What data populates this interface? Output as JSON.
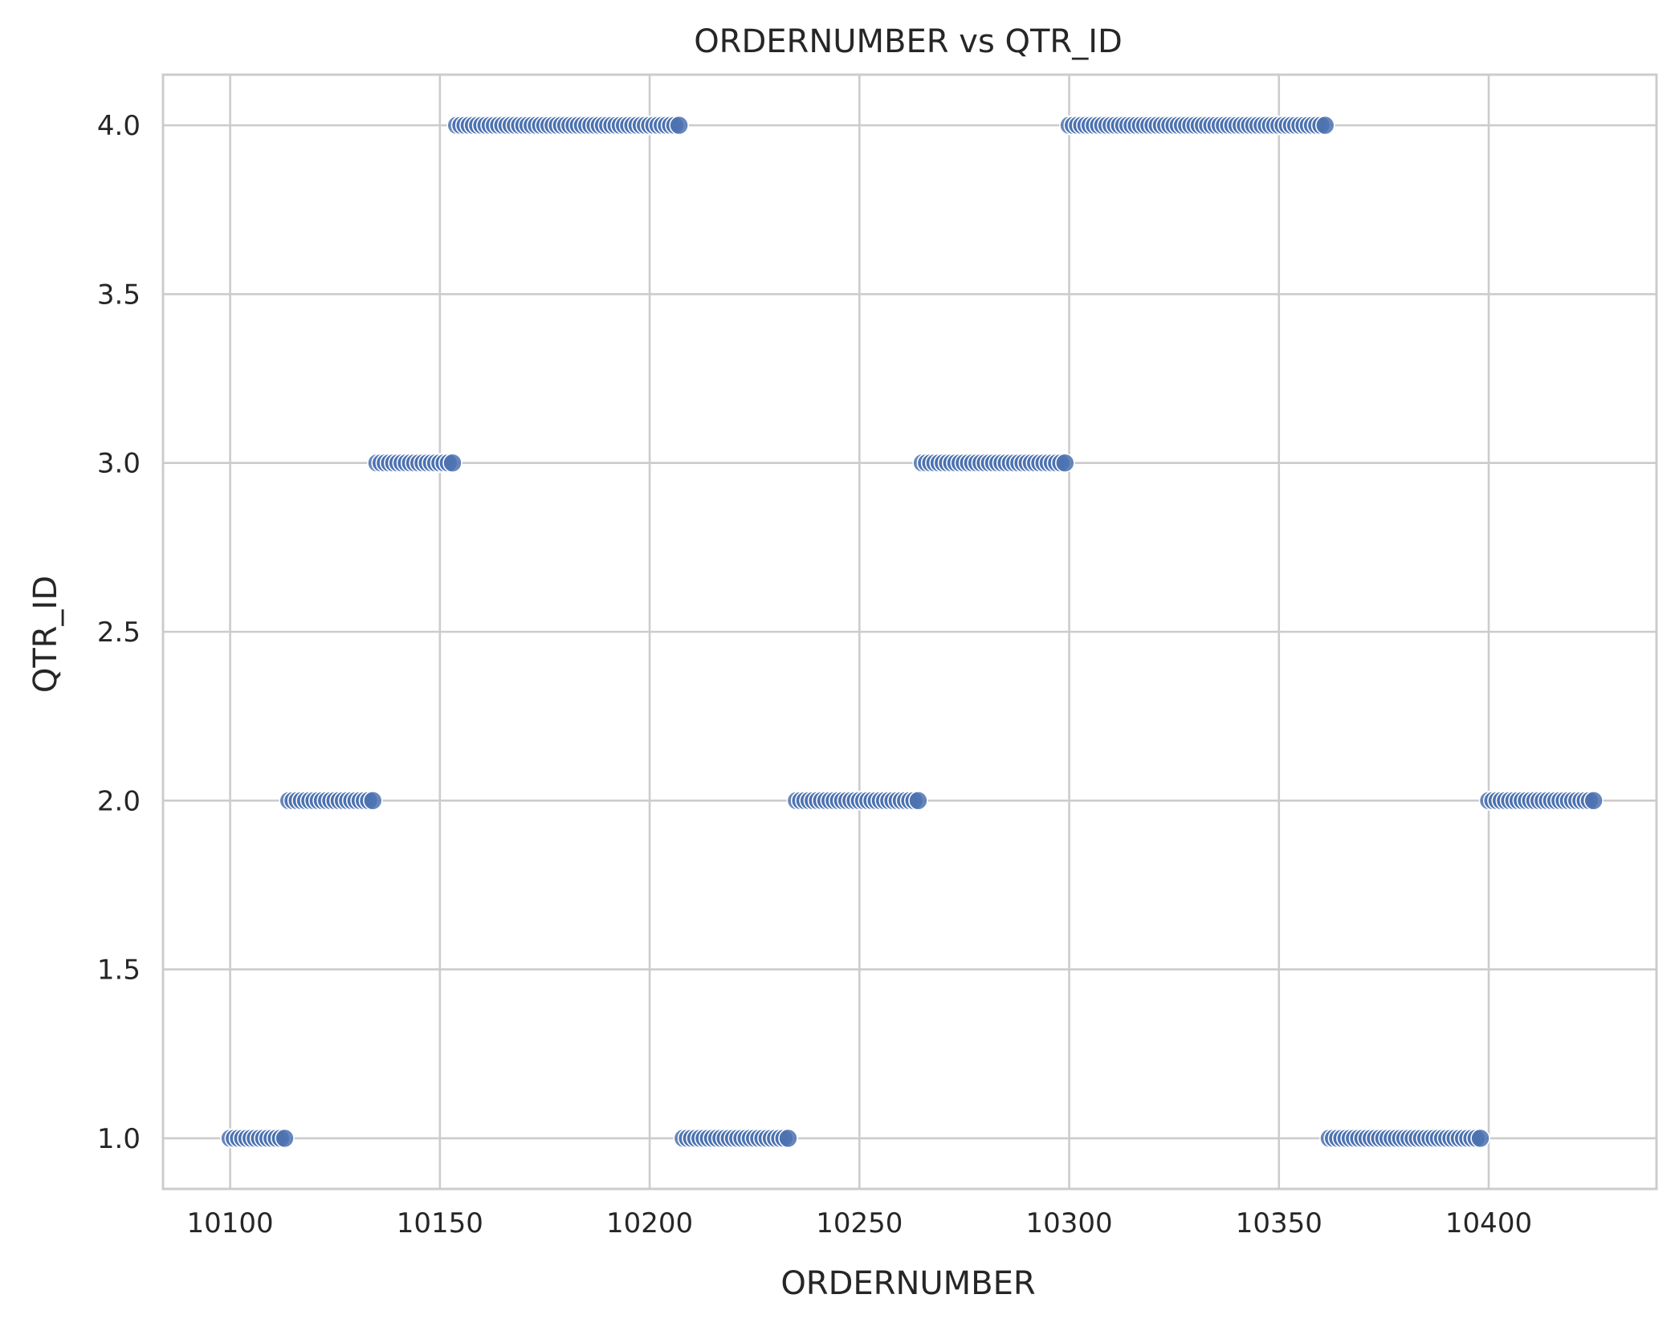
{
  "chart_data": {
    "type": "scatter",
    "title": "ORDERNUMBER vs QTR_ID",
    "xlabel": "ORDERNUMBER",
    "ylabel": "QTR_ID",
    "xlim": [
      10084,
      10440
    ],
    "ylim": [
      0.85,
      4.15
    ],
    "x_ticks": [
      "10100",
      "10150",
      "10200",
      "10250",
      "10300",
      "10350",
      "10400"
    ],
    "y_ticks": [
      "1.0",
      "1.5",
      "2.0",
      "2.5",
      "3.0",
      "3.5",
      "4.0"
    ],
    "grid": true,
    "marker_color": "#4C72B0",
    "series": [
      {
        "points": [
          [
            10100,
            1
          ],
          [
            10101,
            1
          ],
          [
            10102,
            1
          ],
          [
            10103,
            1
          ],
          [
            10104,
            1
          ],
          [
            10105,
            1
          ],
          [
            10106,
            1
          ],
          [
            10107,
            1
          ],
          [
            10108,
            1
          ],
          [
            10109,
            1
          ],
          [
            10110,
            1
          ],
          [
            10111,
            1
          ],
          [
            10112,
            1
          ],
          [
            10113,
            1
          ],
          [
            10114,
            2
          ],
          [
            10115,
            2
          ],
          [
            10116,
            2
          ],
          [
            10117,
            2
          ],
          [
            10118,
            2
          ],
          [
            10119,
            2
          ],
          [
            10120,
            2
          ],
          [
            10121,
            2
          ],
          [
            10122,
            2
          ],
          [
            10123,
            2
          ],
          [
            10124,
            2
          ],
          [
            10125,
            2
          ],
          [
            10126,
            2
          ],
          [
            10127,
            2
          ],
          [
            10128,
            2
          ],
          [
            10129,
            2
          ],
          [
            10130,
            2
          ],
          [
            10131,
            2
          ],
          [
            10132,
            2
          ],
          [
            10133,
            2
          ],
          [
            10134,
            2
          ],
          [
            10135,
            3
          ],
          [
            10136,
            3
          ],
          [
            10137,
            3
          ],
          [
            10138,
            3
          ],
          [
            10139,
            3
          ],
          [
            10140,
            3
          ],
          [
            10141,
            3
          ],
          [
            10142,
            3
          ],
          [
            10143,
            3
          ],
          [
            10144,
            3
          ],
          [
            10145,
            3
          ],
          [
            10146,
            3
          ],
          [
            10147,
            3
          ],
          [
            10148,
            3
          ],
          [
            10149,
            3
          ],
          [
            10150,
            3
          ],
          [
            10151,
            3
          ],
          [
            10152,
            3
          ],
          [
            10153,
            3
          ],
          [
            10154,
            4
          ],
          [
            10155,
            4
          ],
          [
            10156,
            4
          ],
          [
            10157,
            4
          ],
          [
            10158,
            4
          ],
          [
            10159,
            4
          ],
          [
            10160,
            4
          ],
          [
            10161,
            4
          ],
          [
            10162,
            4
          ],
          [
            10163,
            4
          ],
          [
            10164,
            4
          ],
          [
            10165,
            4
          ],
          [
            10166,
            4
          ],
          [
            10167,
            4
          ],
          [
            10168,
            4
          ],
          [
            10169,
            4
          ],
          [
            10170,
            4
          ],
          [
            10171,
            4
          ],
          [
            10172,
            4
          ],
          [
            10173,
            4
          ],
          [
            10174,
            4
          ],
          [
            10175,
            4
          ],
          [
            10176,
            4
          ],
          [
            10177,
            4
          ],
          [
            10178,
            4
          ],
          [
            10179,
            4
          ],
          [
            10180,
            4
          ],
          [
            10181,
            4
          ],
          [
            10182,
            4
          ],
          [
            10183,
            4
          ],
          [
            10184,
            4
          ],
          [
            10185,
            4
          ],
          [
            10186,
            4
          ],
          [
            10187,
            4
          ],
          [
            10188,
            4
          ],
          [
            10189,
            4
          ],
          [
            10190,
            4
          ],
          [
            10191,
            4
          ],
          [
            10192,
            4
          ],
          [
            10193,
            4
          ],
          [
            10194,
            4
          ],
          [
            10195,
            4
          ],
          [
            10196,
            4
          ],
          [
            10197,
            4
          ],
          [
            10198,
            4
          ],
          [
            10199,
            4
          ],
          [
            10200,
            4
          ],
          [
            10201,
            4
          ],
          [
            10202,
            4
          ],
          [
            10203,
            4
          ],
          [
            10204,
            4
          ],
          [
            10205,
            4
          ],
          [
            10206,
            4
          ],
          [
            10207,
            4
          ],
          [
            10208,
            1
          ],
          [
            10209,
            1
          ],
          [
            10210,
            1
          ],
          [
            10211,
            1
          ],
          [
            10212,
            1
          ],
          [
            10213,
            1
          ],
          [
            10214,
            1
          ],
          [
            10215,
            1
          ],
          [
            10216,
            1
          ],
          [
            10217,
            1
          ],
          [
            10218,
            1
          ],
          [
            10219,
            1
          ],
          [
            10220,
            1
          ],
          [
            10221,
            1
          ],
          [
            10222,
            1
          ],
          [
            10223,
            1
          ],
          [
            10224,
            1
          ],
          [
            10225,
            1
          ],
          [
            10226,
            1
          ],
          [
            10227,
            1
          ],
          [
            10228,
            1
          ],
          [
            10229,
            1
          ],
          [
            10230,
            1
          ],
          [
            10231,
            1
          ],
          [
            10232,
            1
          ],
          [
            10233,
            1
          ],
          [
            10235,
            2
          ],
          [
            10236,
            2
          ],
          [
            10237,
            2
          ],
          [
            10238,
            2
          ],
          [
            10239,
            2
          ],
          [
            10240,
            2
          ],
          [
            10241,
            2
          ],
          [
            10242,
            2
          ],
          [
            10243,
            2
          ],
          [
            10244,
            2
          ],
          [
            10245,
            2
          ],
          [
            10246,
            2
          ],
          [
            10247,
            2
          ],
          [
            10248,
            2
          ],
          [
            10249,
            2
          ],
          [
            10250,
            2
          ],
          [
            10251,
            2
          ],
          [
            10252,
            2
          ],
          [
            10253,
            2
          ],
          [
            10254,
            2
          ],
          [
            10255,
            2
          ],
          [
            10256,
            2
          ],
          [
            10257,
            2
          ],
          [
            10258,
            2
          ],
          [
            10259,
            2
          ],
          [
            10260,
            2
          ],
          [
            10261,
            2
          ],
          [
            10262,
            2
          ],
          [
            10263,
            2
          ],
          [
            10264,
            2
          ],
          [
            10265,
            3
          ],
          [
            10266,
            3
          ],
          [
            10267,
            3
          ],
          [
            10268,
            3
          ],
          [
            10269,
            3
          ],
          [
            10270,
            3
          ],
          [
            10271,
            3
          ],
          [
            10272,
            3
          ],
          [
            10273,
            3
          ],
          [
            10274,
            3
          ],
          [
            10275,
            3
          ],
          [
            10276,
            3
          ],
          [
            10277,
            3
          ],
          [
            10278,
            3
          ],
          [
            10279,
            3
          ],
          [
            10280,
            3
          ],
          [
            10281,
            3
          ],
          [
            10282,
            3
          ],
          [
            10283,
            3
          ],
          [
            10284,
            3
          ],
          [
            10285,
            3
          ],
          [
            10286,
            3
          ],
          [
            10287,
            3
          ],
          [
            10288,
            3
          ],
          [
            10289,
            3
          ],
          [
            10290,
            3
          ],
          [
            10291,
            3
          ],
          [
            10292,
            3
          ],
          [
            10293,
            3
          ],
          [
            10294,
            3
          ],
          [
            10295,
            3
          ],
          [
            10296,
            3
          ],
          [
            10297,
            3
          ],
          [
            10298,
            3
          ],
          [
            10299,
            3
          ],
          [
            10300,
            4
          ],
          [
            10301,
            4
          ],
          [
            10302,
            4
          ],
          [
            10303,
            4
          ],
          [
            10304,
            4
          ],
          [
            10305,
            4
          ],
          [
            10306,
            4
          ],
          [
            10307,
            4
          ],
          [
            10308,
            4
          ],
          [
            10309,
            4
          ],
          [
            10310,
            4
          ],
          [
            10311,
            4
          ],
          [
            10312,
            4
          ],
          [
            10313,
            4
          ],
          [
            10314,
            4
          ],
          [
            10315,
            4
          ],
          [
            10316,
            4
          ],
          [
            10317,
            4
          ],
          [
            10318,
            4
          ],
          [
            10319,
            4
          ],
          [
            10320,
            4
          ],
          [
            10321,
            4
          ],
          [
            10322,
            4
          ],
          [
            10323,
            4
          ],
          [
            10324,
            4
          ],
          [
            10325,
            4
          ],
          [
            10326,
            4
          ],
          [
            10327,
            4
          ],
          [
            10328,
            4
          ],
          [
            10329,
            4
          ],
          [
            10330,
            4
          ],
          [
            10331,
            4
          ],
          [
            10332,
            4
          ],
          [
            10333,
            4
          ],
          [
            10334,
            4
          ],
          [
            10335,
            4
          ],
          [
            10336,
            4
          ],
          [
            10337,
            4
          ],
          [
            10338,
            4
          ],
          [
            10339,
            4
          ],
          [
            10340,
            4
          ],
          [
            10341,
            4
          ],
          [
            10342,
            4
          ],
          [
            10343,
            4
          ],
          [
            10344,
            4
          ],
          [
            10345,
            4
          ],
          [
            10346,
            4
          ],
          [
            10347,
            4
          ],
          [
            10348,
            4
          ],
          [
            10349,
            4
          ],
          [
            10350,
            4
          ],
          [
            10351,
            4
          ],
          [
            10352,
            4
          ],
          [
            10353,
            4
          ],
          [
            10354,
            4
          ],
          [
            10355,
            4
          ],
          [
            10356,
            4
          ],
          [
            10357,
            4
          ],
          [
            10358,
            4
          ],
          [
            10359,
            4
          ],
          [
            10360,
            4
          ],
          [
            10361,
            4
          ],
          [
            10362,
            1
          ],
          [
            10363,
            1
          ],
          [
            10364,
            1
          ],
          [
            10365,
            1
          ],
          [
            10366,
            1
          ],
          [
            10367,
            1
          ],
          [
            10368,
            1
          ],
          [
            10369,
            1
          ],
          [
            10370,
            1
          ],
          [
            10371,
            1
          ],
          [
            10372,
            1
          ],
          [
            10373,
            1
          ],
          [
            10374,
            1
          ],
          [
            10375,
            1
          ],
          [
            10376,
            1
          ],
          [
            10377,
            1
          ],
          [
            10378,
            1
          ],
          [
            10379,
            1
          ],
          [
            10380,
            1
          ],
          [
            10381,
            1
          ],
          [
            10382,
            1
          ],
          [
            10383,
            1
          ],
          [
            10384,
            1
          ],
          [
            10385,
            1
          ],
          [
            10386,
            1
          ],
          [
            10387,
            1
          ],
          [
            10388,
            1
          ],
          [
            10389,
            1
          ],
          [
            10390,
            1
          ],
          [
            10391,
            1
          ],
          [
            10392,
            1
          ],
          [
            10393,
            1
          ],
          [
            10394,
            1
          ],
          [
            10395,
            1
          ],
          [
            10396,
            1
          ],
          [
            10397,
            1
          ],
          [
            10398,
            1
          ],
          [
            10400,
            2
          ],
          [
            10401,
            2
          ],
          [
            10402,
            2
          ],
          [
            10403,
            2
          ],
          [
            10404,
            2
          ],
          [
            10405,
            2
          ],
          [
            10406,
            2
          ],
          [
            10407,
            2
          ],
          [
            10408,
            2
          ],
          [
            10409,
            2
          ],
          [
            10410,
            2
          ],
          [
            10411,
            2
          ],
          [
            10412,
            2
          ],
          [
            10413,
            2
          ],
          [
            10414,
            2
          ],
          [
            10415,
            2
          ],
          [
            10416,
            2
          ],
          [
            10417,
            2
          ],
          [
            10418,
            2
          ],
          [
            10419,
            2
          ],
          [
            10420,
            2
          ],
          [
            10421,
            2
          ],
          [
            10422,
            2
          ],
          [
            10423,
            2
          ],
          [
            10424,
            2
          ],
          [
            10425,
            2
          ]
        ]
      }
    ]
  }
}
